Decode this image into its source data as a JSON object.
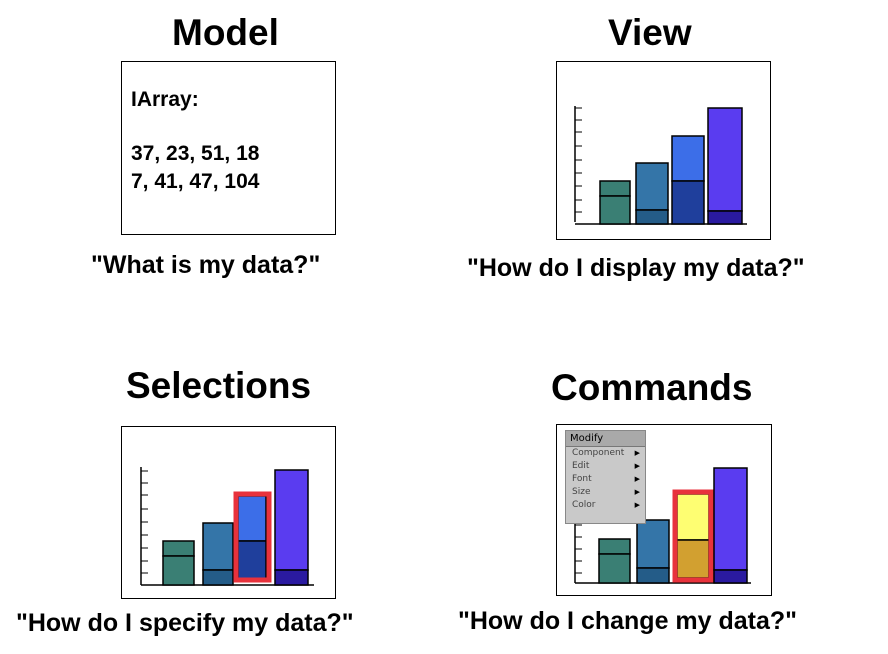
{
  "panels": {
    "model": {
      "title": "Model",
      "caption": "\"What is my data?\"",
      "array_label": "IArray:",
      "values_line1": "37, 23, 51, 18",
      "values_line2": "7, 41, 47, 104"
    },
    "view": {
      "title": "View",
      "caption": "\"How do I display my data?\""
    },
    "selections": {
      "title": "Selections",
      "caption": "\"How do I specify my data?\""
    },
    "commands": {
      "title": "Commands",
      "caption": "\"How do I change my data?\"",
      "menu": {
        "title": "Modify",
        "items": [
          "Component",
          "Edit",
          "Font",
          "Size",
          "Color"
        ]
      }
    }
  },
  "colors": {
    "teal": "#3a7f74",
    "steel_blue": "#3475a8",
    "bright_blue": "#3c6ee8",
    "dark_blue": "#1f3f9c",
    "violet": "#5a3cf0",
    "deep_violet": "#2a1aa0",
    "selection_red": "#e8323c",
    "highlight_yellow": "#fefe72",
    "highlight_gold": "#d2a030"
  }
}
